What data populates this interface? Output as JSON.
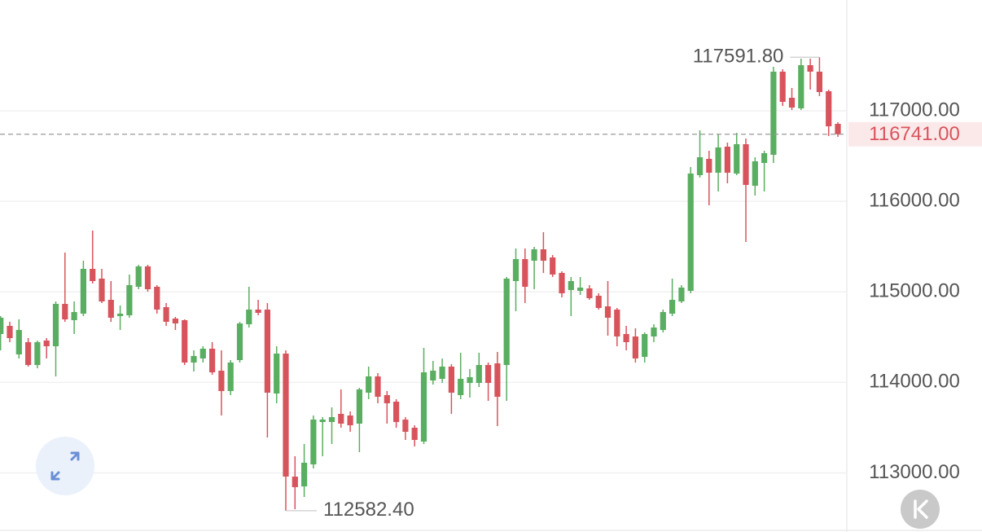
{
  "chart_data": {
    "type": "candlestick",
    "up_color": "#5aae61",
    "down_color": "#d8545c",
    "ylim": [
      112347,
      118224
    ],
    "yticks": [
      {
        "value": 117000,
        "label": "117000.00"
      },
      {
        "value": 116000,
        "label": "116000.00"
      },
      {
        "value": 115000,
        "label": "115000.00"
      },
      {
        "value": 114000,
        "label": "114000.00"
      },
      {
        "value": 113000,
        "label": "113000.00"
      }
    ],
    "grid": true,
    "last_price": {
      "value": 116741,
      "label": "116741.00"
    },
    "high_label": {
      "value": 117591.8,
      "label": "117591.80"
    },
    "low_label": {
      "value": 112582.4,
      "label": "112582.40"
    },
    "open": [
      114534,
      114624,
      114309,
      114444,
      114192,
      114462,
      114399,
      114867,
      114687,
      114759,
      115254,
      115146,
      114912,
      114732,
      114741,
      115056,
      115281,
      115056,
      114831,
      114705,
      114687,
      114219,
      114264,
      114372,
      114129,
      113904,
      114246,
      114642,
      114804,
      114804,
      113877,
      114318,
      112959,
      112851,
      113094,
      113562,
      113562,
      113652,
      113634,
      113544,
      113886,
      114066,
      113859,
      113787,
      113589,
      113499,
      113346,
      114021,
      114039,
      114174,
      113859,
      113994,
      113994,
      114192,
      114210,
      114192,
      115119,
      115362,
      115344,
      115470,
      115380,
      115209,
      115020,
      115011,
      115038,
      114957,
      114840,
      114804,
      114534,
      114507,
      114282,
      114507,
      114579,
      114759,
      114894,
      115011,
      116289,
      116469,
      116316,
      116604,
      116307,
      116631,
      116172,
      116424,
      116514,
      117432,
      117144,
      117027,
      117504,
      117432,
      117216,
      116856
    ],
    "high": [
      114732,
      114669,
      114696,
      114489,
      114462,
      114489,
      114894,
      115434,
      114894,
      115344,
      115677,
      115254,
      115119,
      114849,
      115191,
      115299,
      115299,
      115074,
      114876,
      114723,
      114696,
      114354,
      114399,
      114444,
      114354,
      114246,
      114669,
      115056,
      114912,
      114876,
      114399,
      114354,
      113184,
      113319,
      113634,
      113616,
      113724,
      113922,
      113679,
      113940,
      114174,
      114102,
      113904,
      113814,
      113616,
      113526,
      114381,
      114237,
      114264,
      114201,
      114327,
      114147,
      114327,
      114219,
      114336,
      115164,
      115479,
      115479,
      115497,
      115659,
      115407,
      115227,
      115164,
      115164,
      115074,
      114984,
      115119,
      114822,
      114624,
      114597,
      114552,
      114642,
      114804,
      115146,
      115074,
      116379,
      116784,
      116559,
      116739,
      116649,
      116757,
      116694,
      116487,
      116559,
      117486,
      117459,
      117252,
      117576,
      117576,
      117591.8,
      117234,
      116874
    ],
    "low": [
      114354,
      114444,
      114264,
      114174,
      114156,
      114264,
      114066,
      114669,
      114534,
      114732,
      115092,
      114876,
      114669,
      114579,
      114714,
      115029,
      115002,
      114759,
      114624,
      114579,
      114192,
      114120,
      114219,
      114084,
      113634,
      113859,
      114219,
      114606,
      114741,
      113391,
      113769,
      112582.4,
      112599,
      112734,
      113049,
      113184,
      113319,
      113499,
      113454,
      113229,
      113814,
      113769,
      113544,
      113499,
      113364,
      113292,
      113319,
      113976,
      113994,
      113652,
      113814,
      113832,
      113949,
      113796,
      113517,
      113796,
      114786,
      114876,
      115029,
      115209,
      115164,
      114939,
      114732,
      114966,
      114912,
      114804,
      114516,
      114399,
      114354,
      114219,
      114219,
      114444,
      114552,
      114732,
      114876,
      114984,
      116262,
      115956,
      116109,
      116199,
      116289,
      115551,
      116064,
      116109,
      116424,
      117054,
      117009,
      117009,
      117234,
      117162,
      116721,
      116712
    ],
    "close": [
      114714,
      114489,
      114579,
      114192,
      114444,
      114399,
      114867,
      114696,
      114777,
      115254,
      115119,
      114894,
      114714,
      114759,
      115074,
      115281,
      115029,
      114804,
      114669,
      114651,
      114219,
      114291,
      114372,
      114111,
      113904,
      114219,
      114651,
      114804,
      114768,
      113886,
      114318,
      112959,
      112842,
      113112,
      113589,
      113589,
      113616,
      113544,
      113526,
      113922,
      114066,
      113841,
      113769,
      113562,
      113454,
      113364,
      114111,
      114129,
      114174,
      113886,
      114039,
      114057,
      114192,
      113994,
      113841,
      115146,
      115362,
      115056,
      115470,
      115344,
      115191,
      114984,
      115119,
      115047,
      114930,
      114822,
      114714,
      114507,
      114444,
      114264,
      114534,
      114606,
      114777,
      114912,
      115047,
      116307,
      116487,
      116316,
      116595,
      116316,
      116631,
      116181,
      116442,
      116532,
      117432,
      117099,
      117036,
      117504,
      117432,
      117207,
      116829,
      116741
    ]
  }
}
